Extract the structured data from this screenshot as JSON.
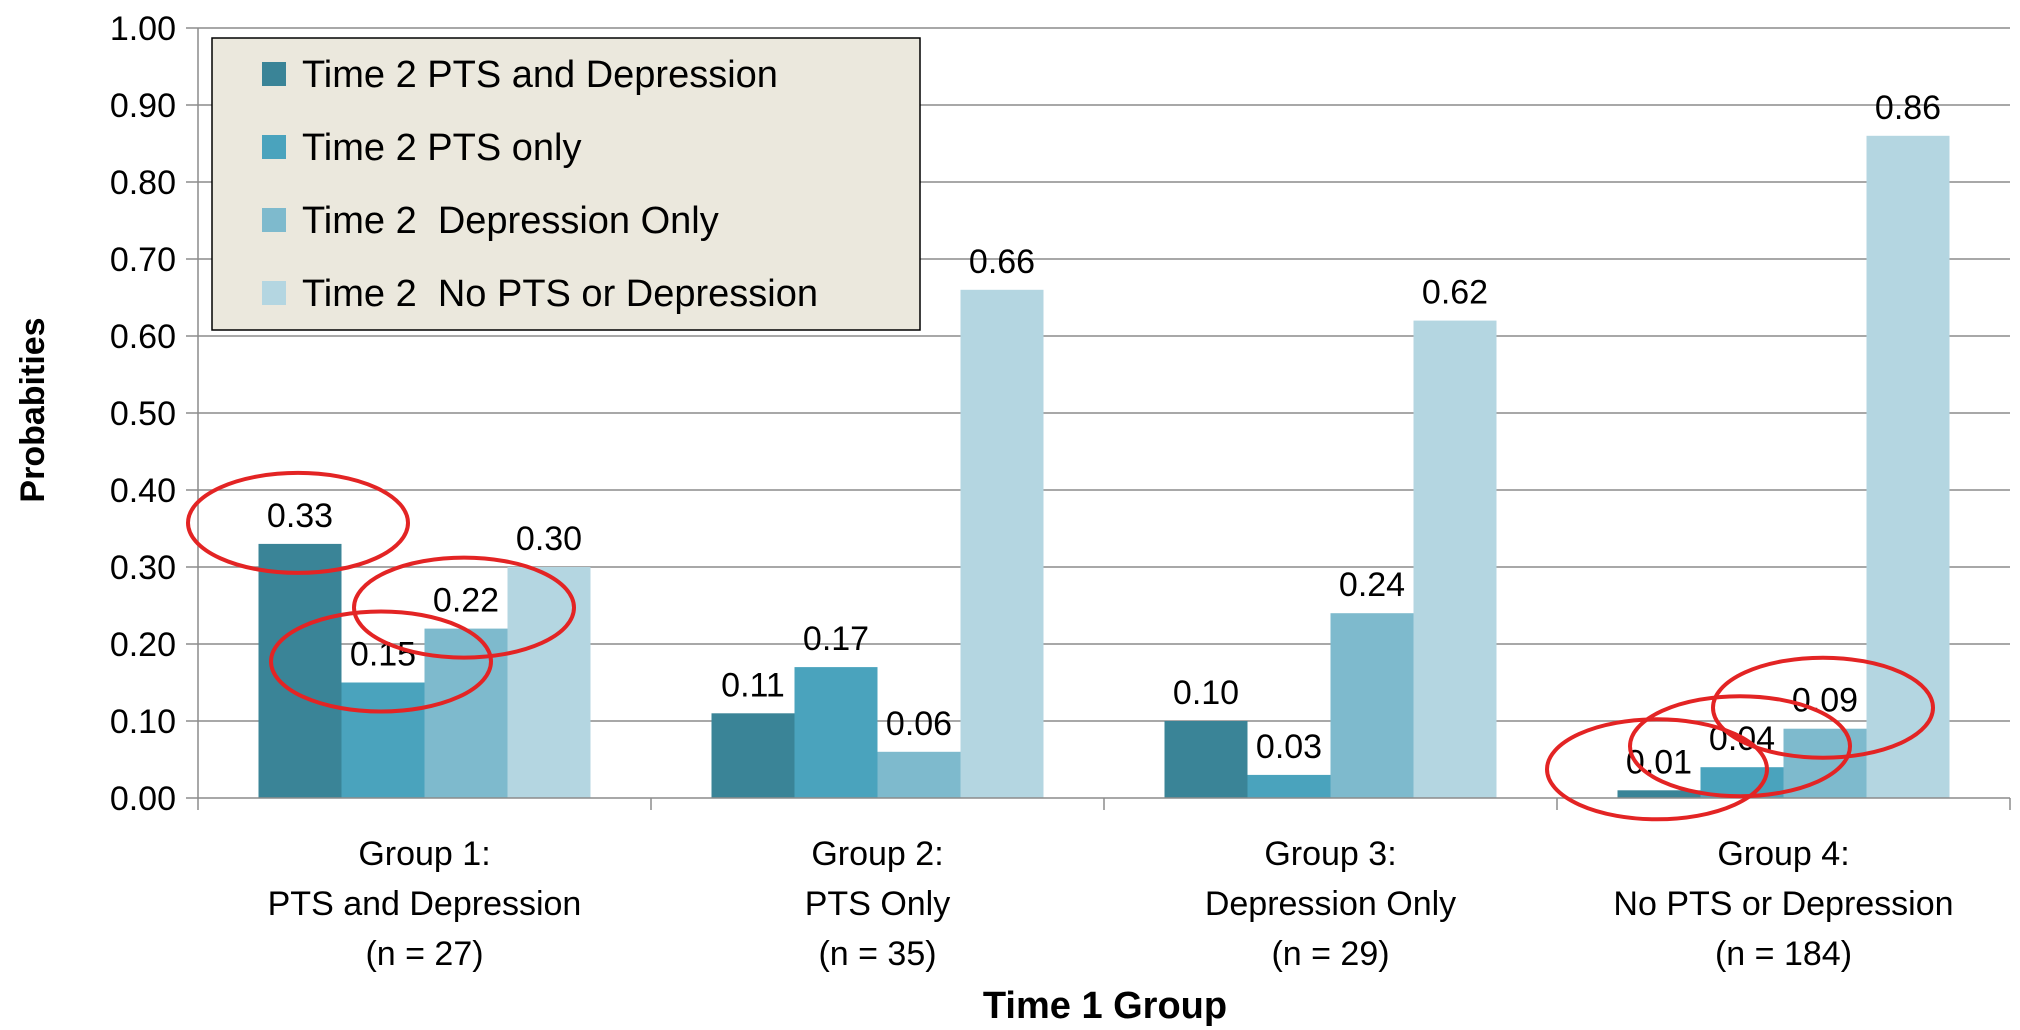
{
  "chart_data": {
    "type": "bar",
    "title": "",
    "xlabel": "Time 1 Group",
    "ylabel": "Probabities",
    "ylim": [
      0,
      1
    ],
    "yticks": [
      "0.00",
      "0.10",
      "0.20",
      "0.30",
      "0.40",
      "0.50",
      "0.60",
      "0.70",
      "0.80",
      "0.90",
      "1.00"
    ],
    "grid": true,
    "legend_position": "top-left",
    "categories": [
      [
        "Group 1:",
        "PTS and Depression",
        "(n = 27)"
      ],
      [
        "Group 2:",
        "PTS Only",
        "(n = 35)"
      ],
      [
        "Group 3:",
        "Depression Only",
        "(n = 29)"
      ],
      [
        "Group 4:",
        "No PTS or Depression",
        "(n = 184)"
      ]
    ],
    "series": [
      {
        "name": "Time 2 PTS and Depression",
        "color": "#3a8497",
        "values": [
          0.33,
          0.11,
          0.1,
          0.01
        ],
        "labels": [
          "0.33",
          "0.11",
          "0.10",
          "0.01"
        ]
      },
      {
        "name": "Time 2 PTS only",
        "color": "#4aa3bd",
        "values": [
          0.15,
          0.17,
          0.03,
          0.04
        ],
        "labels": [
          "0.15",
          "0.17",
          "0.03",
          "0.04"
        ]
      },
      {
        "name": "Time 2  Depression Only",
        "color": "#7ebacd",
        "values": [
          0.22,
          0.06,
          0.24,
          0.09
        ],
        "labels": [
          "0.22",
          "0.06",
          "0.24",
          "0.09"
        ]
      },
      {
        "name": "Time 2  No PTS or Depression",
        "color": "#b4d6e1",
        "values": [
          0.3,
          0.66,
          0.62,
          0.86
        ],
        "labels": [
          "0.30",
          "0.66",
          "0.62",
          "0.86"
        ]
      }
    ],
    "highlighted": [
      [
        0,
        0
      ],
      [
        0,
        3
      ],
      [
        1,
        0
      ],
      [
        1,
        3
      ],
      [
        2,
        0
      ],
      [
        2,
        3
      ]
    ],
    "highlight_color": "#e32424",
    "legend_background": "#ebe8dd"
  }
}
